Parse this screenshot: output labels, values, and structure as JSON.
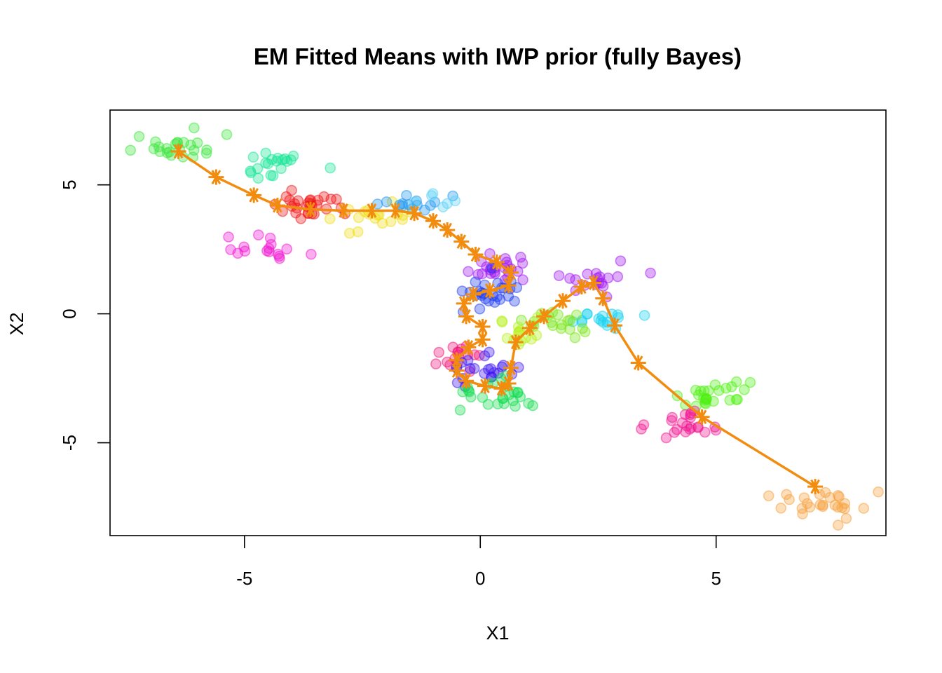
{
  "chart_data": {
    "type": "scatter",
    "title": "EM Fitted Means with IWP prior (fully Bayes)",
    "xlabel": "X1",
    "ylabel": "X2",
    "xlim": [
      -7.85,
      8.6
    ],
    "ylim": [
      -8.6,
      7.9
    ],
    "xticks": [
      -5,
      0,
      5
    ],
    "yticks": [
      -5,
      0,
      5
    ],
    "xtick_labels": [
      "-5",
      "0",
      "5"
    ],
    "ytick_labels": [
      "-5",
      "0",
      "5"
    ],
    "grid": false,
    "legend": "none",
    "path_color": "#f28c0f",
    "clusters": [
      {
        "color": "#3ce63c",
        "cx": -6.4,
        "cy": 6.5,
        "n": 24,
        "sx": 0.45,
        "sy": 0.3,
        "seed": 11
      },
      {
        "color": "#14e696",
        "cx": -4.4,
        "cy": 5.8,
        "n": 20,
        "sx": 0.4,
        "sy": 0.3,
        "seed": 12
      },
      {
        "color": "#f01414",
        "cx": -3.8,
        "cy": 4.2,
        "n": 30,
        "sx": 0.45,
        "sy": 0.25,
        "seed": 13
      },
      {
        "color": "#f0dc14",
        "cx": -2.2,
        "cy": 3.8,
        "n": 18,
        "sx": 0.35,
        "sy": 0.3,
        "seed": 14
      },
      {
        "color": "#1e96f0",
        "cx": -1.6,
        "cy": 4.2,
        "n": 14,
        "sx": 0.35,
        "sy": 0.2,
        "seed": 15
      },
      {
        "color": "#5ad2f5",
        "cx": -0.9,
        "cy": 4.3,
        "n": 6,
        "sx": 0.3,
        "sy": 0.2,
        "seed": 16
      },
      {
        "color": "#f014d2",
        "cx": -4.6,
        "cy": 2.6,
        "n": 16,
        "sx": 0.4,
        "sy": 0.3,
        "seed": 17
      },
      {
        "color": "#a014f0",
        "cx": 0.4,
        "cy": 1.7,
        "n": 24,
        "sx": 0.35,
        "sy": 0.3,
        "seed": 18
      },
      {
        "color": "#1e3cf0",
        "cx": 0.2,
        "cy": 0.8,
        "n": 26,
        "sx": 0.4,
        "sy": 0.35,
        "seed": 19
      },
      {
        "color": "#a014f0",
        "cx": 2.4,
        "cy": 1.4,
        "n": 18,
        "sx": 0.4,
        "sy": 0.3,
        "seed": 20
      },
      {
        "color": "#14d2f0",
        "cx": 2.7,
        "cy": -0.3,
        "n": 16,
        "sx": 0.4,
        "sy": 0.25,
        "seed": 21
      },
      {
        "color": "#78e614",
        "cx": 1.4,
        "cy": -0.5,
        "n": 20,
        "sx": 0.4,
        "sy": 0.25,
        "seed": 22
      },
      {
        "color": "#b4f014",
        "cx": 0.9,
        "cy": -0.7,
        "n": 14,
        "sx": 0.3,
        "sy": 0.3,
        "seed": 23
      },
      {
        "color": "#f01478",
        "cx": -0.4,
        "cy": -1.6,
        "n": 16,
        "sx": 0.3,
        "sy": 0.3,
        "seed": 24
      },
      {
        "color": "#3c14f0",
        "cx": 0.0,
        "cy": -2.2,
        "n": 22,
        "sx": 0.35,
        "sy": 0.3,
        "seed": 25
      },
      {
        "color": "#14dc50",
        "cx": 0.3,
        "cy": -3.1,
        "n": 26,
        "sx": 0.45,
        "sy": 0.3,
        "seed": 26
      },
      {
        "color": "#50f014",
        "cx": 4.9,
        "cy": -3.1,
        "n": 26,
        "sx": 0.35,
        "sy": 0.3,
        "seed": 27
      },
      {
        "color": "#f01490",
        "cx": 4.3,
        "cy": -4.3,
        "n": 22,
        "sx": 0.35,
        "sy": 0.3,
        "seed": 28
      },
      {
        "color": "#f5a03c",
        "cx": 7.3,
        "cy": -7.4,
        "n": 26,
        "sx": 0.4,
        "sy": 0.35,
        "seed": 29
      }
    ],
    "fitted_means": [
      [
        -6.4,
        6.3
      ],
      [
        -5.6,
        5.3
      ],
      [
        -4.8,
        4.6
      ],
      [
        -4.3,
        4.2
      ],
      [
        -3.6,
        4.05
      ],
      [
        -2.9,
        4.0
      ],
      [
        -2.3,
        4.0
      ],
      [
        -1.8,
        4.0
      ],
      [
        -1.4,
        3.9
      ],
      [
        -1.0,
        3.6
      ],
      [
        -0.7,
        3.25
      ],
      [
        -0.4,
        2.8
      ],
      [
        -0.1,
        2.3
      ],
      [
        0.35,
        2.0
      ],
      [
        0.65,
        1.6
      ],
      [
        0.6,
        1.1
      ],
      [
        0.2,
        0.9
      ],
      [
        -0.15,
        0.75
      ],
      [
        -0.35,
        0.4
      ],
      [
        -0.3,
        -0.1
      ],
      [
        0.05,
        -0.5
      ],
      [
        0.05,
        -1.0
      ],
      [
        -0.25,
        -1.3
      ],
      [
        -0.5,
        -1.8
      ],
      [
        -0.5,
        -2.2
      ],
      [
        -0.3,
        -2.6
      ],
      [
        0.1,
        -2.8
      ],
      [
        0.45,
        -2.9
      ],
      [
        0.6,
        -2.7
      ],
      [
        0.65,
        -2.1
      ],
      [
        0.75,
        -1.1
      ],
      [
        1.05,
        -0.55
      ],
      [
        1.35,
        -0.1
      ],
      [
        1.75,
        0.5
      ],
      [
        2.15,
        1.05
      ],
      [
        2.4,
        1.2
      ],
      [
        2.6,
        0.6
      ],
      [
        2.85,
        -0.45
      ],
      [
        3.35,
        -1.9
      ],
      [
        4.7,
        -4.0
      ],
      [
        7.1,
        -6.7
      ]
    ]
  }
}
